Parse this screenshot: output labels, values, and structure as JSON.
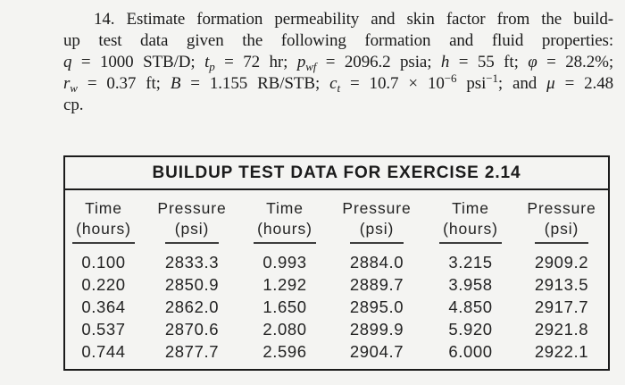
{
  "page": {
    "background": "#f4f4f2",
    "text_color": "#1b1b1b",
    "border_color": "#1b1b1b"
  },
  "problem": {
    "line1": [
      "14. Estimate formation permeability and skin factor from the build-"
    ],
    "line2": [
      "up test data given the following formation and fluid properties:"
    ],
    "line3": [
      "q",
      " = 1000 STB/D; ",
      "t",
      "p",
      " = 72 hr; ",
      "p",
      "wf",
      " = 2096.2 psia; ",
      "h",
      " = 55 ft; ",
      "φ",
      " = 28.2%;"
    ],
    "line4": [
      "r",
      "w",
      " = 0.37 ft; ",
      "B",
      " = 1.155 RB/STB; ",
      "c",
      "t",
      " = 10.7 × 10",
      "−6",
      " psi",
      "−1",
      "; and ",
      "μ",
      " = 2.48"
    ],
    "line5": [
      "cp."
    ]
  },
  "table": {
    "title": "BUILDUP TEST DATA FOR EXERCISE 2.14",
    "columns": [
      {
        "label": "Time",
        "unit": "(hours)"
      },
      {
        "label": "Pressure",
        "unit": "(psi)"
      },
      {
        "label": "Time",
        "unit": "(hours)"
      },
      {
        "label": "Pressure",
        "unit": "(psi)"
      },
      {
        "label": "Time",
        "unit": "(hours)"
      },
      {
        "label": "Pressure",
        "unit": "(psi)"
      }
    ],
    "rows": [
      [
        "0.100",
        "2833.3",
        "0.993",
        "2884.0",
        "3.215",
        "2909.2"
      ],
      [
        "0.220",
        "2850.9",
        "1.292",
        "2889.7",
        "3.958",
        "2913.5"
      ],
      [
        "0.364",
        "2862.0",
        "1.650",
        "2895.0",
        "4.850",
        "2917.7"
      ],
      [
        "0.537",
        "2870.6",
        "2.080",
        "2899.9",
        "5.920",
        "2921.8"
      ],
      [
        "0.744",
        "2877.7",
        "2.596",
        "2904.7",
        "6.000",
        "2922.1"
      ]
    ]
  }
}
